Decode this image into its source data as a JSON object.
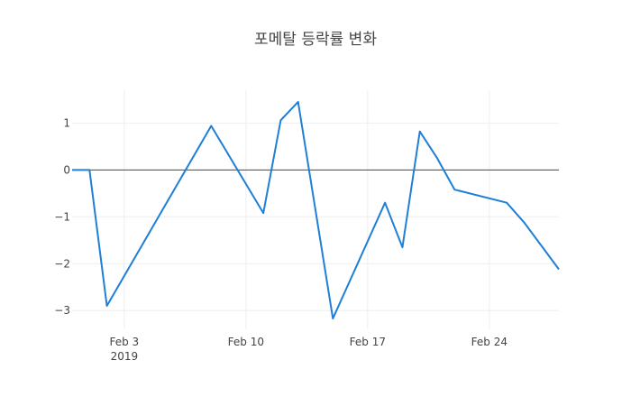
{
  "chart_data": {
    "type": "line",
    "title": "포메탈 등락률 변화",
    "xlabel": "",
    "ylabel": "",
    "x_axis_year_label": "2019",
    "xlim": [
      "2019-01-31",
      "2019-02-28"
    ],
    "ylim": [
      -3.4,
      1.7
    ],
    "x_ticks": [
      {
        "date": "2019-02-03",
        "label": "Feb 3"
      },
      {
        "date": "2019-02-10",
        "label": "Feb 10"
      },
      {
        "date": "2019-02-17",
        "label": "Feb 17"
      },
      {
        "date": "2019-02-24",
        "label": "Feb 24"
      }
    ],
    "y_ticks": [
      1,
      0,
      -1,
      -2,
      -3
    ],
    "y_tick_labels": [
      "1",
      "0",
      "−1",
      "−2",
      "−3"
    ],
    "grid": true,
    "zero_line": true,
    "line_color": "#1f7fd6",
    "series": [
      {
        "x": [
          "2019-01-31",
          "2019-02-01",
          "2019-02-02",
          "2019-02-08",
          "2019-02-11",
          "2019-02-12",
          "2019-02-13",
          "2019-02-15",
          "2019-02-18",
          "2019-02-19",
          "2019-02-20",
          "2019-02-21",
          "2019-02-22",
          "2019-02-25",
          "2019-02-26",
          "2019-02-28"
        ],
        "y": [
          0,
          0,
          -2.9,
          0.94,
          -0.92,
          1.06,
          1.45,
          -3.17,
          -0.7,
          -1.65,
          0.82,
          0.25,
          -0.42,
          -0.7,
          -1.12,
          -2.12
        ]
      }
    ]
  }
}
